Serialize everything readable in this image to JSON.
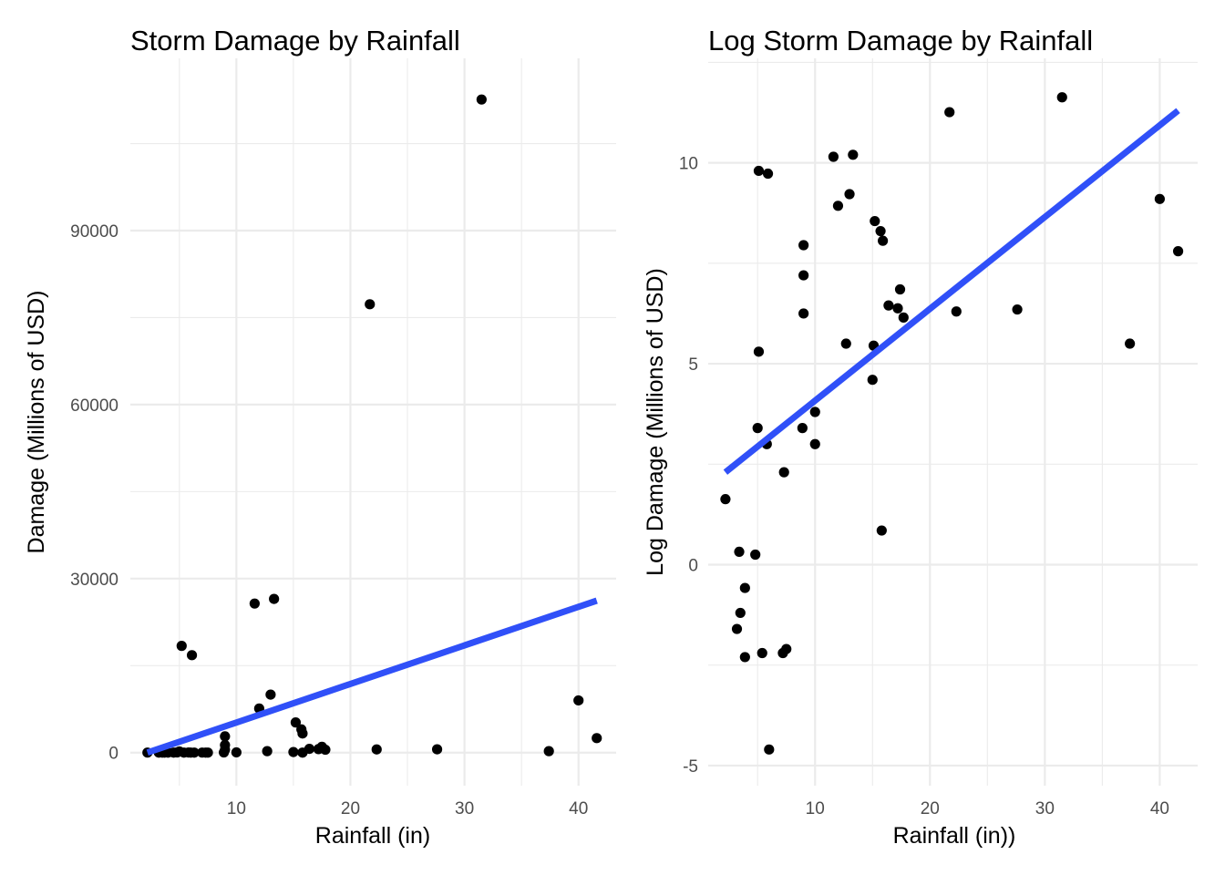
{
  "chart_data": [
    {
      "type": "scatter",
      "title": "Storm Damage by Rainfall",
      "xlabel": "Rainfall (in)",
      "ylabel": "Damage (Millions of USD)",
      "xlim": [
        0.7,
        43.3
      ],
      "ylim": [
        -5700,
        119700
      ],
      "x_ticks": [
        10,
        20,
        30,
        40
      ],
      "y_ticks": [
        0,
        30000,
        60000,
        90000
      ],
      "x_tick_labels": [
        "10",
        "20",
        "30",
        "40"
      ],
      "y_tick_labels": [
        "0",
        "30000",
        "60000",
        "90000"
      ],
      "grid": true,
      "points_color": "#000000",
      "fit_color": "#3050F8",
      "fit_line": {
        "x": [
          2.2,
          41.6
        ],
        "y": [
          0,
          26200
        ]
      },
      "points": [
        {
          "x": 2.2,
          "y": 5
        },
        {
          "x": 3.2,
          "y": 1
        },
        {
          "x": 3.5,
          "y": 1
        },
        {
          "x": 3.7,
          "y": 0
        },
        {
          "x": 4.0,
          "y": 1
        },
        {
          "x": 4.5,
          "y": 1
        },
        {
          "x": 4.8,
          "y": 30
        },
        {
          "x": 5.0,
          "y": 200
        },
        {
          "x": 5.2,
          "y": 18400
        },
        {
          "x": 5.4,
          "y": 0
        },
        {
          "x": 5.8,
          "y": 20
        },
        {
          "x": 6.0,
          "y": 0
        },
        {
          "x": 6.1,
          "y": 16800
        },
        {
          "x": 6.3,
          "y": 0
        },
        {
          "x": 7.0,
          "y": 10
        },
        {
          "x": 7.3,
          "y": 0
        },
        {
          "x": 7.5,
          "y": 0
        },
        {
          "x": 8.9,
          "y": 30
        },
        {
          "x": 9.0,
          "y": 500
        },
        {
          "x": 9.0,
          "y": 1300
        },
        {
          "x": 9.0,
          "y": 2800
        },
        {
          "x": 10.0,
          "y": 45
        },
        {
          "x": 11.6,
          "y": 25700
        },
        {
          "x": 12.0,
          "y": 7600
        },
        {
          "x": 12.7,
          "y": 250
        },
        {
          "x": 13.0,
          "y": 10000
        },
        {
          "x": 13.3,
          "y": 26500
        },
        {
          "x": 15.0,
          "y": 100
        },
        {
          "x": 15.2,
          "y": 5200
        },
        {
          "x": 15.7,
          "y": 4000
        },
        {
          "x": 15.8,
          "y": 3300
        },
        {
          "x": 15.8,
          "y": 2
        },
        {
          "x": 16.4,
          "y": 650
        },
        {
          "x": 17.2,
          "y": 600
        },
        {
          "x": 17.5,
          "y": 1000
        },
        {
          "x": 17.8,
          "y": 500
        },
        {
          "x": 21.7,
          "y": 77300
        },
        {
          "x": 22.3,
          "y": 550
        },
        {
          "x": 27.6,
          "y": 570
        },
        {
          "x": 31.5,
          "y": 112600
        },
        {
          "x": 37.4,
          "y": 250
        },
        {
          "x": 40.0,
          "y": 9000
        },
        {
          "x": 41.6,
          "y": 2500
        }
      ]
    },
    {
      "type": "scatter",
      "title": "Log Storm Damage by Rainfall",
      "xlabel": "Rainfall (in))",
      "ylabel": "Log Damage (Millions of USD)",
      "xlim": [
        0.7,
        43.3
      ],
      "ylim": [
        -5.5,
        12.6
      ],
      "x_ticks": [
        10,
        20,
        30,
        40
      ],
      "y_ticks": [
        -5,
        0,
        5,
        10
      ],
      "x_tick_labels": [
        "10",
        "20",
        "30",
        "40"
      ],
      "y_tick_labels": [
        "-5",
        "0",
        "5",
        "10"
      ],
      "grid": true,
      "points_color": "#000000",
      "fit_color": "#3050F8",
      "fit_line": {
        "x": [
          2.2,
          41.6
        ],
        "y": [
          2.3,
          11.3
        ]
      },
      "points": [
        {
          "x": 2.2,
          "y": 1.63
        },
        {
          "x": 3.2,
          "y": -1.6
        },
        {
          "x": 3.4,
          "y": 0.32
        },
        {
          "x": 3.5,
          "y": -1.2
        },
        {
          "x": 3.9,
          "y": -0.58
        },
        {
          "x": 3.9,
          "y": -2.3
        },
        {
          "x": 4.8,
          "y": 0.25
        },
        {
          "x": 5.0,
          "y": 3.4
        },
        {
          "x": 5.1,
          "y": 5.3
        },
        {
          "x": 5.1,
          "y": 9.8
        },
        {
          "x": 5.4,
          "y": -2.2
        },
        {
          "x": 5.8,
          "y": 3.0
        },
        {
          "x": 5.9,
          "y": 9.73
        },
        {
          "x": 6.0,
          "y": -4.6
        },
        {
          "x": 7.2,
          "y": -2.2
        },
        {
          "x": 7.3,
          "y": 2.3
        },
        {
          "x": 7.5,
          "y": -2.1
        },
        {
          "x": 8.9,
          "y": 3.4
        },
        {
          "x": 9.0,
          "y": 6.25
        },
        {
          "x": 9.0,
          "y": 7.2
        },
        {
          "x": 9.0,
          "y": 7.95
        },
        {
          "x": 10.0,
          "y": 3.8
        },
        {
          "x": 10.0,
          "y": 3.0
        },
        {
          "x": 11.6,
          "y": 10.15
        },
        {
          "x": 12.0,
          "y": 8.93
        },
        {
          "x": 12.7,
          "y": 5.5
        },
        {
          "x": 13.0,
          "y": 9.22
        },
        {
          "x": 13.3,
          "y": 10.2
        },
        {
          "x": 15.0,
          "y": 4.6
        },
        {
          "x": 15.1,
          "y": 5.45
        },
        {
          "x": 15.2,
          "y": 8.55
        },
        {
          "x": 15.7,
          "y": 8.3
        },
        {
          "x": 15.8,
          "y": 0.85
        },
        {
          "x": 15.9,
          "y": 8.06
        },
        {
          "x": 16.4,
          "y": 6.45
        },
        {
          "x": 17.2,
          "y": 6.38
        },
        {
          "x": 17.4,
          "y": 6.85
        },
        {
          "x": 17.7,
          "y": 6.15
        },
        {
          "x": 21.7,
          "y": 11.26
        },
        {
          "x": 22.3,
          "y": 6.3
        },
        {
          "x": 27.6,
          "y": 6.35
        },
        {
          "x": 31.5,
          "y": 11.63
        },
        {
          "x": 37.4,
          "y": 5.5
        },
        {
          "x": 40.0,
          "y": 9.1
        },
        {
          "x": 41.6,
          "y": 7.8
        }
      ]
    }
  ]
}
